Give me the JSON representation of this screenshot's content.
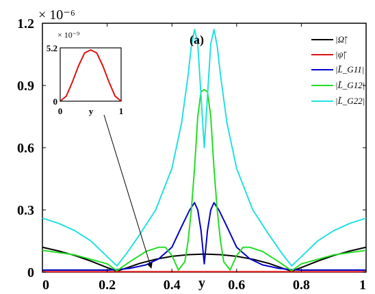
{
  "chart_data": {
    "type": "line",
    "title": "",
    "annotation": "(a)",
    "xlabel": "y",
    "ylabel": "",
    "xlim": [
      0,
      1
    ],
    "ylim": [
      0,
      1.2
    ],
    "y_multiplier": "× 10⁻⁶",
    "x_ticks": [
      0,
      0.2,
      0.4,
      0.6,
      0.8,
      1
    ],
    "x_tick_labels": [
      "0",
      "0.2",
      "0.4",
      "0.6",
      "0.8",
      "1"
    ],
    "y_ticks": [
      0,
      0.3,
      0.6,
      0.9,
      1.2
    ],
    "y_tick_labels": [
      "0",
      "0.3",
      "0.6",
      "0.9",
      "1.2"
    ],
    "grid": false,
    "legend_position": "top-right",
    "series": [
      {
        "name": "|Ω̃|",
        "color": "#000000",
        "x": [
          0,
          0.05,
          0.1,
          0.15,
          0.2,
          0.23,
          0.26,
          0.3,
          0.35,
          0.4,
          0.45,
          0.5,
          0.55,
          0.6,
          0.65,
          0.7,
          0.74,
          0.77,
          0.8,
          0.85,
          0.9,
          0.95,
          1
        ],
        "y": [
          0.12,
          0.102,
          0.08,
          0.053,
          0.022,
          0.005,
          0.02,
          0.042,
          0.062,
          0.076,
          0.084,
          0.087,
          0.084,
          0.076,
          0.062,
          0.042,
          0.02,
          0.005,
          0.022,
          0.053,
          0.08,
          0.102,
          0.12
        ]
      },
      {
        "name": "|ψ̃|",
        "color": "#e01010",
        "x": [
          0,
          0.5,
          1
        ],
        "y": [
          0.002,
          0.002,
          0.002
        ]
      },
      {
        "name": "|L̃_G11|",
        "color": "#0000c8",
        "x": [
          0,
          0.1,
          0.2,
          0.23,
          0.27,
          0.32,
          0.36,
          0.4,
          0.43,
          0.455,
          0.47,
          0.48,
          0.49,
          0.5,
          0.51,
          0.52,
          0.53,
          0.545,
          0.57,
          0.6,
          0.64,
          0.68,
          0.73,
          0.77,
          0.8,
          0.9,
          1
        ],
        "y": [
          0.01,
          0.01,
          0.01,
          0.012,
          0.018,
          0.035,
          0.065,
          0.12,
          0.22,
          0.3,
          0.335,
          0.3,
          0.2,
          0.04,
          0.2,
          0.3,
          0.335,
          0.3,
          0.22,
          0.12,
          0.065,
          0.035,
          0.018,
          0.012,
          0.01,
          0.01,
          0.01
        ]
      },
      {
        "name": "|L̃_G12|",
        "color": "#22dd22",
        "x": [
          0,
          0.1,
          0.2,
          0.23,
          0.27,
          0.32,
          0.36,
          0.38,
          0.4,
          0.42,
          0.44,
          0.45,
          0.46,
          0.47,
          0.48,
          0.49,
          0.5,
          0.51,
          0.52,
          0.53,
          0.54,
          0.55,
          0.56,
          0.58,
          0.6,
          0.62,
          0.64,
          0.68,
          0.73,
          0.77,
          0.8,
          0.9,
          1
        ],
        "y": [
          0.105,
          0.083,
          0.04,
          0.007,
          0.05,
          0.1,
          0.12,
          0.12,
          0.08,
          0.01,
          0.05,
          0.15,
          0.3,
          0.5,
          0.75,
          0.87,
          0.88,
          0.87,
          0.75,
          0.5,
          0.3,
          0.15,
          0.05,
          0.01,
          0.08,
          0.12,
          0.12,
          0.1,
          0.05,
          0.007,
          0.04,
          0.083,
          0.105
        ]
      },
      {
        "name": "|L̃_G22|",
        "color": "#22e0e0",
        "x": [
          0,
          0.05,
          0.1,
          0.15,
          0.2,
          0.23,
          0.26,
          0.3,
          0.35,
          0.4,
          0.43,
          0.45,
          0.46,
          0.47,
          0.48,
          0.49,
          0.5,
          0.51,
          0.52,
          0.53,
          0.54,
          0.55,
          0.57,
          0.6,
          0.65,
          0.7,
          0.74,
          0.77,
          0.8,
          0.85,
          0.9,
          0.95,
          1
        ],
        "y": [
          0.26,
          0.235,
          0.2,
          0.15,
          0.075,
          0.03,
          0.09,
          0.18,
          0.3,
          0.5,
          0.72,
          0.95,
          1.09,
          1.17,
          1.1,
          0.85,
          0.6,
          0.85,
          1.1,
          1.17,
          1.09,
          0.95,
          0.72,
          0.5,
          0.3,
          0.18,
          0.09,
          0.03,
          0.075,
          0.15,
          0.2,
          0.235,
          0.26
        ]
      }
    ],
    "inset": {
      "type": "line",
      "xlabel": "y",
      "xlim": [
        0,
        1
      ],
      "ylim": [
        0,
        5.2
      ],
      "y_multiplier": "× 10⁻⁹",
      "x_ticks": [
        0,
        1
      ],
      "x_tick_labels": [
        "0",
        "1"
      ],
      "y_ticks": [
        0,
        5.2
      ],
      "y_tick_labels": [
        "0",
        "5.2"
      ],
      "series": [
        {
          "name": "|ψ̃|",
          "color": "#e01010",
          "x": [
            0,
            0.1,
            0.2,
            0.3,
            0.4,
            0.5,
            0.6,
            0.7,
            0.8,
            0.9,
            1
          ],
          "y": [
            0,
            0.5,
            1.88,
            3.44,
            4.7,
            5.0,
            4.7,
            3.44,
            1.88,
            0.5,
            0
          ]
        }
      ]
    }
  }
}
